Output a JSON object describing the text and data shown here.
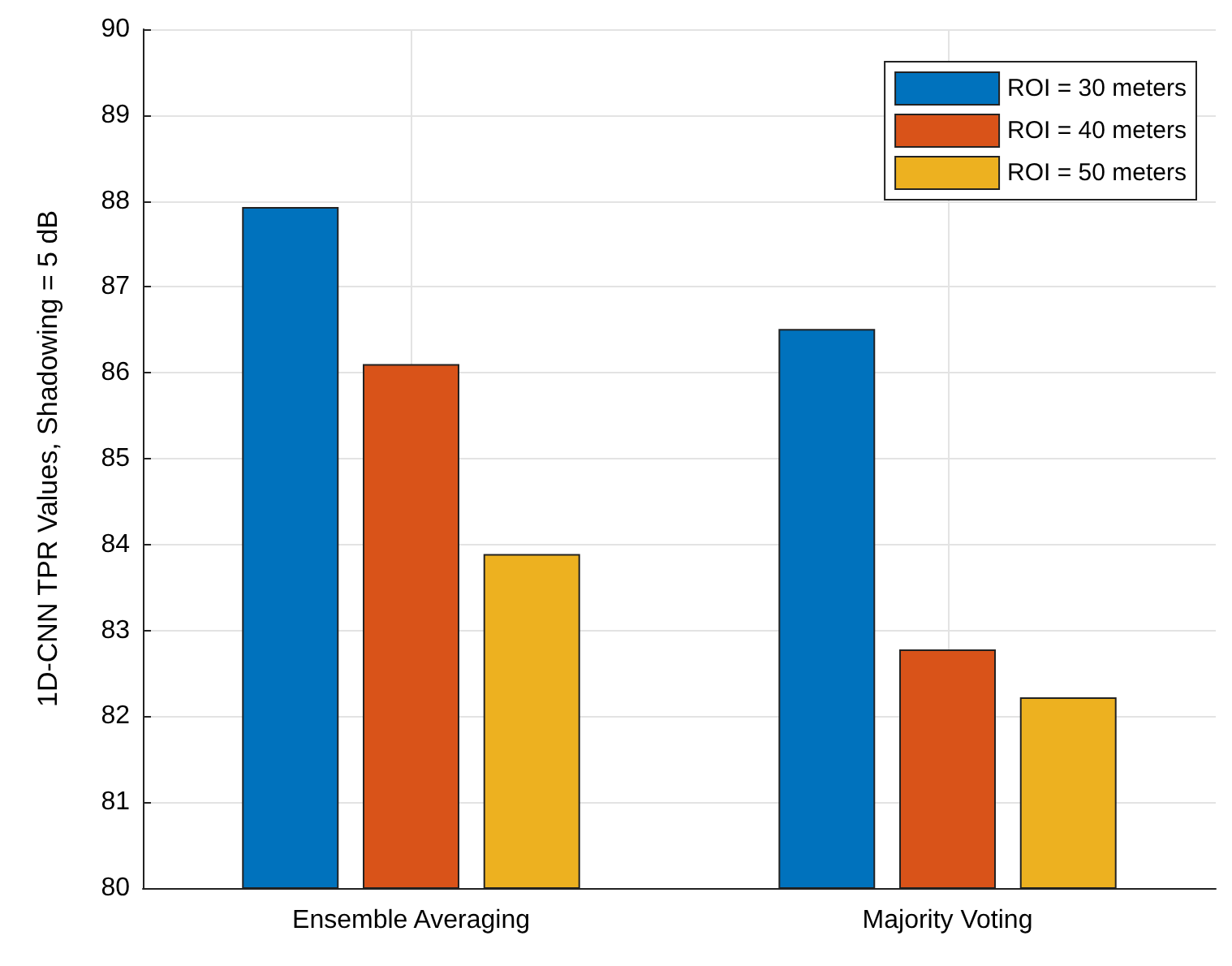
{
  "chart_data": {
    "type": "bar",
    "ylabel": "1D-CNN TPR Values, Shadowing = 5 dB",
    "categories": [
      "Ensemble Averaging",
      "Majority Voting"
    ],
    "series": [
      {
        "name": "ROI = 30 meters",
        "color": "#0072bd",
        "values": [
          87.93,
          86.51
        ]
      },
      {
        "name": "ROI = 40 meters",
        "color": "#d95319",
        "values": [
          86.1,
          82.78
        ]
      },
      {
        "name": "ROI = 50 meters",
        "color": "#edb120",
        "values": [
          83.89,
          82.22
        ]
      }
    ],
    "ylim": [
      80,
      90
    ],
    "yticks": [
      80,
      81,
      82,
      83,
      84,
      85,
      86,
      87,
      88,
      89,
      90
    ],
    "grid": true,
    "legend": "top right"
  }
}
